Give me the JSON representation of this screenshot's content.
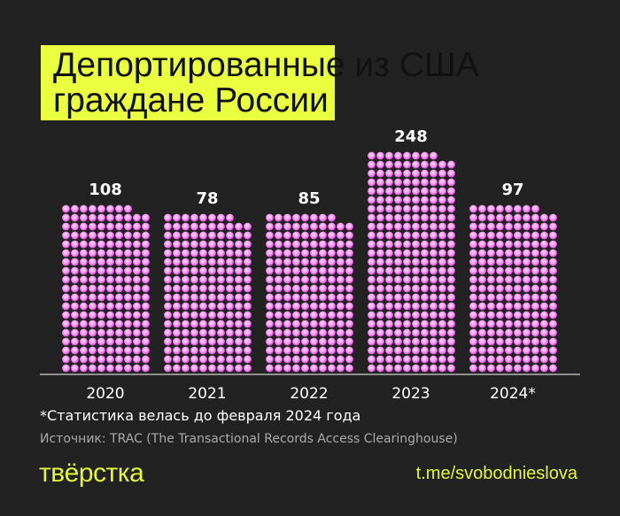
{
  "title_line1": "Депортированные из США",
  "title_line2": "граждане России",
  "chart_data": {
    "type": "bar",
    "title": "Депортированные из США граждане России",
    "categories": [
      "2020",
      "2021",
      "2022",
      "2023",
      "2024*"
    ],
    "values": [
      108,
      78,
      85,
      248,
      97
    ],
    "xlabel": "",
    "ylabel": "",
    "style": "unit-dot bars",
    "colors": {
      "dot": "#f25cf0",
      "dot_highlight": "#ffc8fb",
      "axis": "#ffffff"
    }
  },
  "footnote": "*Статистика велась до февраля 2024 года",
  "source": "Источник: TRAC (The Transactional Records Access Clearinghouse)",
  "logo": "тВёрстка",
  "logo_display": "твёрстка",
  "link": "t.me/svobodnieslova"
}
